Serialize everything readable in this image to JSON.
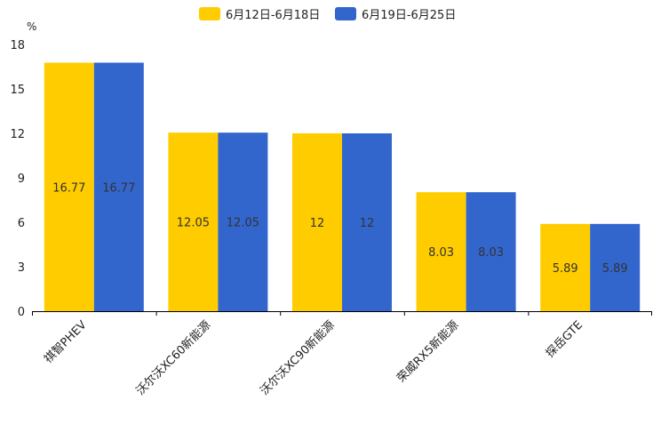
{
  "chart_data": {
    "type": "bar",
    "unit": "%",
    "categories": [
      "祺智PHEV",
      "沃尔沃XC60新能源",
      "沃尔沃XC90新能源",
      "荣威RX5新能源",
      "探岳GTE"
    ],
    "series": [
      {
        "name": "6月12日-6月18日",
        "color": "#ffcc00",
        "values": [
          16.77,
          12.05,
          12,
          8.03,
          5.89
        ]
      },
      {
        "name": "6月19日-6月25日",
        "color": "#3366cc",
        "values": [
          16.77,
          12.05,
          12,
          8.03,
          5.89
        ]
      }
    ],
    "value_labels": [
      [
        "16.77",
        "12.05",
        "12",
        "8.03",
        "5.89"
      ],
      [
        "16.77",
        "12.05",
        "12",
        "8.03",
        "5.89"
      ]
    ],
    "ylim": [
      0,
      18
    ],
    "yticks": [
      "0",
      "3",
      "6",
      "9",
      "12",
      "15",
      "18"
    ],
    "legend_position": "top-center",
    "grid": false
  }
}
